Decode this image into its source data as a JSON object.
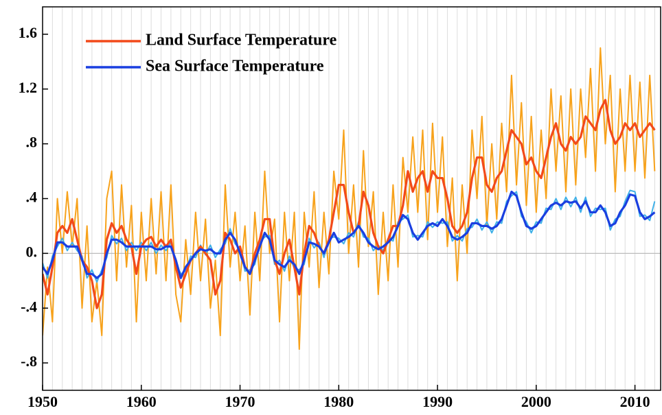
{
  "chart_data": {
    "type": "line",
    "xlim": [
      1950,
      2012.6
    ],
    "xticks": [
      1950,
      1960,
      1970,
      1980,
      1990,
      2000,
      2010
    ],
    "x_minor_step": 1,
    "ylim": [
      -1.0,
      1.8
    ],
    "yticks": [
      {
        "value": -0.8,
        "label": "-.8"
      },
      {
        "value": -0.4,
        "label": "-.4"
      },
      {
        "value": 0,
        "label": "0."
      },
      {
        "value": 0.4,
        "label": ".4"
      },
      {
        "value": 0.8,
        "label": ".8"
      },
      1.2,
      1.6
    ],
    "x": [
      1950,
      1950.5,
      1951,
      1951.5,
      1952,
      1952.5,
      1953,
      1953.5,
      1954,
      1954.5,
      1955,
      1955.5,
      1956,
      1956.5,
      1957,
      1957.5,
      1958,
      1958.5,
      1959,
      1959.5,
      1960,
      1960.5,
      1961,
      1961.5,
      1962,
      1962.5,
      1963,
      1963.5,
      1964,
      1964.5,
      1965,
      1965.5,
      1966,
      1966.5,
      1967,
      1967.5,
      1968,
      1968.5,
      1969,
      1969.5,
      1970,
      1970.5,
      1971,
      1971.5,
      1972,
      1972.5,
      1973,
      1973.5,
      1974,
      1974.5,
      1975,
      1975.5,
      1976,
      1976.5,
      1977,
      1977.5,
      1978,
      1978.5,
      1979,
      1979.5,
      1980,
      1980.5,
      1981,
      1981.5,
      1982,
      1982.5,
      1983,
      1983.5,
      1984,
      1984.5,
      1985,
      1985.5,
      1986,
      1986.5,
      1987,
      1987.5,
      1988,
      1988.5,
      1989,
      1989.5,
      1990,
      1990.5,
      1991,
      1991.5,
      1992,
      1992.5,
      1993,
      1993.5,
      1994,
      1994.5,
      1995,
      1995.5,
      1996,
      1996.5,
      1997,
      1997.5,
      1998,
      1998.5,
      1999,
      1999.5,
      2000,
      2000.5,
      2001,
      2001.5,
      2002,
      2002.5,
      2003,
      2003.5,
      2004,
      2004.5,
      2005,
      2005.5,
      2006,
      2006.5,
      2007,
      2007.5,
      2008,
      2008.5,
      2009,
      2009.5,
      2010,
      2010.5,
      2011,
      2011.5,
      2012
    ],
    "series": [
      {
        "name": "Land Surface Temperature",
        "color": "#f7a21b",
        "smoothed_color": "#f24a1a",
        "values": [
          -0.6,
          -0.1,
          -0.5,
          0.4,
          0.0,
          0.45,
          0.05,
          0.4,
          -0.4,
          0.2,
          -0.5,
          -0.2,
          -0.6,
          0.4,
          0.6,
          -0.2,
          0.5,
          -0.1,
          0.35,
          -0.5,
          0.3,
          -0.2,
          0.4,
          -0.15,
          0.45,
          -0.2,
          0.5,
          -0.3,
          -0.5,
          0.1,
          -0.3,
          0.3,
          -0.2,
          0.25,
          -0.4,
          -0.05,
          -0.6,
          0.5,
          -0.1,
          0.3,
          -0.2,
          0.2,
          -0.45,
          0.3,
          -0.2,
          0.6,
          0.0,
          0.25,
          -0.5,
          0.3,
          -0.2,
          0.3,
          -0.7,
          0.3,
          -0.1,
          0.45,
          -0.25,
          0.3,
          -0.15,
          0.6,
          0.25,
          0.9,
          0.0,
          0.5,
          -0.1,
          0.75,
          0.05,
          0.45,
          -0.3,
          0.3,
          -0.2,
          0.5,
          -0.1,
          0.7,
          0.3,
          0.85,
          0.3,
          0.9,
          0.1,
          0.95,
          0.3,
          0.85,
          0.05,
          0.55,
          -0.2,
          0.5,
          0.0,
          0.9,
          0.4,
          1.0,
          0.2,
          0.8,
          0.25,
          0.95,
          0.45,
          1.3,
          0.5,
          1.1,
          0.35,
          1.0,
          0.3,
          0.9,
          0.4,
          1.2,
          0.6,
          1.15,
          0.45,
          1.2,
          0.5,
          1.2,
          0.7,
          1.35,
          0.6,
          1.5,
          0.8,
          1.3,
          0.45,
          1.2,
          0.6,
          1.3,
          0.6,
          1.25,
          0.55,
          1.3,
          0.6
        ],
        "smoothed_values": [
          -0.15,
          -0.3,
          -0.1,
          0.15,
          0.2,
          0.15,
          0.25,
          0.1,
          -0.05,
          -0.1,
          -0.2,
          -0.4,
          -0.3,
          0.1,
          0.22,
          0.15,
          0.2,
          0.1,
          0.05,
          -0.15,
          0.05,
          0.1,
          0.12,
          0.05,
          0.1,
          0.05,
          0.1,
          -0.1,
          -0.25,
          -0.15,
          -0.05,
          0,
          0.05,
          0,
          -0.05,
          -0.3,
          -0.2,
          0.15,
          0.1,
          0,
          0.05,
          -0.1,
          -0.15,
          0,
          0.1,
          0.25,
          0.25,
          -0.05,
          -0.15,
          0,
          0.1,
          -0.1,
          -0.3,
          0,
          0.2,
          0.15,
          0.05,
          0,
          0.1,
          0.3,
          0.5,
          0.5,
          0.3,
          0.15,
          0.2,
          0.45,
          0.35,
          0.15,
          0.05,
          0,
          0.1,
          0.2,
          0.2,
          0.35,
          0.6,
          0.45,
          0.55,
          0.6,
          0.45,
          0.6,
          0.55,
          0.55,
          0.4,
          0.2,
          0.15,
          0.2,
          0.3,
          0.55,
          0.7,
          0.7,
          0.5,
          0.45,
          0.55,
          0.6,
          0.75,
          0.9,
          0.85,
          0.8,
          0.65,
          0.7,
          0.6,
          0.55,
          0.7,
          0.85,
          0.95,
          0.8,
          0.75,
          0.85,
          0.8,
          0.85,
          1.0,
          0.95,
          0.9,
          1.05,
          1.12,
          0.9,
          0.8,
          0.85,
          0.95,
          0.9,
          0.95,
          0.85,
          0.9,
          0.95,
          0.9
        ]
      },
      {
        "name": "Sea Surface Temperature",
        "color": "#3fb0e8",
        "smoothed_color": "#1a3fe0",
        "values": [
          -0.07,
          -0.18,
          -0.02,
          0.05,
          0.11,
          0.02,
          0.08,
          0.02,
          -0.02,
          -0.18,
          -0.12,
          -0.21,
          -0.12,
          -0.03,
          0.13,
          0.07,
          0.11,
          0.02,
          0.08,
          0.02,
          0.08,
          0.02,
          0.08,
          0.0,
          0.06,
          0.02,
          0.08,
          -0.08,
          -0.15,
          -0.13,
          -0.02,
          -0.03,
          0.06,
          -0.01,
          0.06,
          -0.03,
          0.03,
          0.07,
          0.18,
          0.07,
          0.03,
          -0.13,
          -0.12,
          -0.08,
          0.08,
          0.12,
          0.13,
          -0.08,
          -0.05,
          -0.13,
          -0.02,
          -0.11,
          -0.12,
          -0.08,
          0.11,
          0.04,
          0.08,
          -0.03,
          0.11,
          0.12,
          0.11,
          0.07,
          0.15,
          0.12,
          0.23,
          0.12,
          0.11,
          0.02,
          0.06,
          0.02,
          0.11,
          0.09,
          0.23,
          0.25,
          0.28,
          0.12,
          0.13,
          0.12,
          0.23,
          0.19,
          0.23,
          0.22,
          0.23,
          0.09,
          0.13,
          0.09,
          0.18,
          0.19,
          0.25,
          0.17,
          0.23,
          0.15,
          0.23,
          0.22,
          0.38,
          0.42,
          0.45,
          0.27,
          0.23,
          0.15,
          0.23,
          0.22,
          0.33,
          0.32,
          0.4,
          0.32,
          0.41,
          0.34,
          0.41,
          0.3,
          0.41,
          0.27,
          0.33,
          0.32,
          0.33,
          0.17,
          0.25,
          0.27,
          0.38,
          0.46,
          0.45,
          0.27,
          0.28,
          0.24,
          0.38
        ],
        "smoothed_values": [
          -0.1,
          -0.15,
          -0.05,
          0.08,
          0.08,
          0.05,
          0.05,
          0.05,
          -0.05,
          -0.15,
          -0.15,
          -0.18,
          -0.15,
          0,
          0.1,
          0.1,
          0.08,
          0.05,
          0.05,
          0.05,
          0.05,
          0.05,
          0.05,
          0.03,
          0.03,
          0.05,
          0.05,
          -0.05,
          -0.18,
          -0.1,
          -0.05,
          0,
          0.03,
          0.02,
          0.03,
          0,
          0,
          0.1,
          0.15,
          0.1,
          0,
          -0.1,
          -0.15,
          -0.05,
          0.05,
          0.15,
          0.1,
          -0.05,
          -0.08,
          -0.1,
          -0.05,
          -0.08,
          -0.15,
          -0.05,
          0.08,
          0.07,
          0.05,
          0,
          0.08,
          0.15,
          0.08,
          0.1,
          0.12,
          0.15,
          0.2,
          0.15,
          0.08,
          0.05,
          0.03,
          0.05,
          0.08,
          0.12,
          0.2,
          0.28,
          0.25,
          0.15,
          0.1,
          0.15,
          0.2,
          0.22,
          0.2,
          0.25,
          0.2,
          0.12,
          0.1,
          0.12,
          0.15,
          0.22,
          0.22,
          0.2,
          0.2,
          0.18,
          0.2,
          0.25,
          0.35,
          0.45,
          0.42,
          0.3,
          0.2,
          0.18,
          0.2,
          0.25,
          0.3,
          0.35,
          0.37,
          0.35,
          0.38,
          0.37,
          0.38,
          0.33,
          0.38,
          0.3,
          0.3,
          0.35,
          0.3,
          0.2,
          0.22,
          0.3,
          0.35,
          0.43,
          0.42,
          0.3,
          0.25,
          0.27,
          0.3
        ]
      }
    ]
  }
}
